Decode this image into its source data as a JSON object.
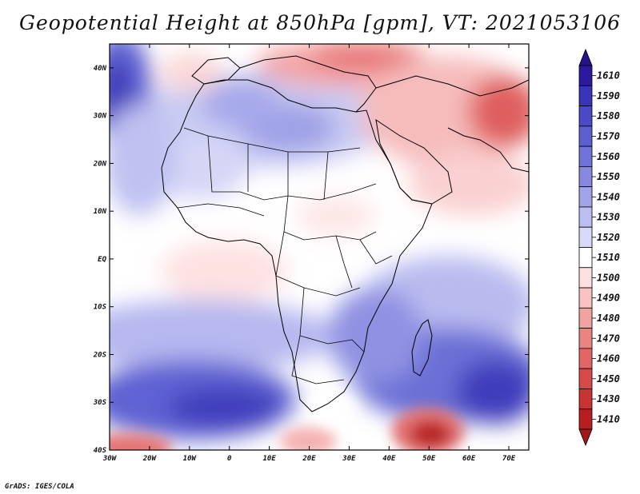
{
  "title": "Geopotential Height at 850hPa [gpm], VT: 2021053106",
  "credit": "GrADS: IGES/COLA",
  "map": {
    "lat_ticks": [
      {
        "lat": 40,
        "label": "40N"
      },
      {
        "lat": 30,
        "label": "30N"
      },
      {
        "lat": 20,
        "label": "20N"
      },
      {
        "lat": 10,
        "label": "10N"
      },
      {
        "lat": 0,
        "label": "EQ"
      },
      {
        "lat": -10,
        "label": "10S"
      },
      {
        "lat": -20,
        "label": "20S"
      },
      {
        "lat": -30,
        "label": "30S"
      },
      {
        "lat": -40,
        "label": "40S"
      }
    ],
    "lon_ticks": [
      {
        "lon": -30,
        "label": "30W"
      },
      {
        "lon": -20,
        "label": "20W"
      },
      {
        "lon": -10,
        "label": "10W"
      },
      {
        "lon": 0,
        "label": "0"
      },
      {
        "lon": 10,
        "label": "10E"
      },
      {
        "lon": 20,
        "label": "20E"
      },
      {
        "lon": 30,
        "label": "30E"
      },
      {
        "lon": 40,
        "label": "40E"
      },
      {
        "lon": 50,
        "label": "50E"
      },
      {
        "lon": 60,
        "label": "60E"
      },
      {
        "lon": 70,
        "label": "70E"
      }
    ],
    "lon_range": [
      -30,
      75
    ],
    "lat_range": [
      -40,
      45
    ]
  },
  "colorbar": {
    "levels": [
      {
        "label": "1610",
        "color": "#2b1a9e"
      },
      {
        "label": "1590",
        "color": "#3a35b8"
      },
      {
        "label": "1580",
        "color": "#4a4ac6"
      },
      {
        "label": "1570",
        "color": "#5c5fd0"
      },
      {
        "label": "1560",
        "color": "#7073d8"
      },
      {
        "label": "1550",
        "color": "#8689df"
      },
      {
        "label": "1540",
        "color": "#a0a3e8"
      },
      {
        "label": "1530",
        "color": "#bcbef0"
      },
      {
        "label": "1520",
        "color": "#d9daf7"
      },
      {
        "label": "1510",
        "color": "#ffffff"
      },
      {
        "label": "1500",
        "color": "#fde1e1"
      },
      {
        "label": "1490",
        "color": "#f9c3c3"
      },
      {
        "label": "1480",
        "color": "#f3a2a2"
      },
      {
        "label": "1470",
        "color": "#ec8383"
      },
      {
        "label": "1460",
        "color": "#e36666"
      },
      {
        "label": "1450",
        "color": "#d84a4a"
      },
      {
        "label": "1430",
        "color": "#c83333"
      },
      {
        "label": "1410",
        "color": "#b51f1f"
      }
    ],
    "top_color": "#241389",
    "bottom_color": "#a31818"
  }
}
